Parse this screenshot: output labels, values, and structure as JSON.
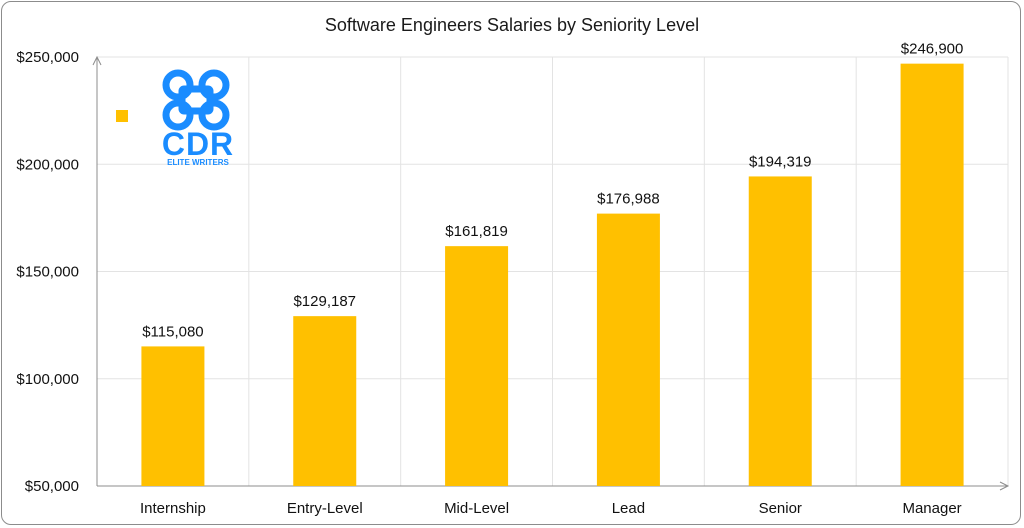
{
  "chart_data": {
    "type": "bar",
    "title": "Software Engineers Salaries by Seniority Level",
    "categories": [
      "Internship",
      "Entry-Level",
      "Mid-Level",
      "Lead",
      "Senior",
      "Manager"
    ],
    "values": [
      115080,
      129187,
      161819,
      176988,
      194319,
      246900
    ],
    "data_labels": [
      "$115,080",
      "$129,187",
      "$161,819",
      "$176,988",
      "$194,319",
      "$246,900"
    ],
    "ylim": [
      50000,
      250000
    ],
    "yticks": [
      50000,
      100000,
      150000,
      200000,
      250000
    ],
    "ytick_labels": [
      "$50,000",
      "$100,000",
      "$150,000",
      "$200,000",
      "$250,000"
    ],
    "xlabel": "",
    "ylabel": "",
    "grid": true,
    "bar_color": "#FFC000",
    "legend": {
      "placement": "top-left",
      "entries": [
        ""
      ]
    }
  },
  "logo": {
    "text_main": "CDR",
    "text_sub": "ELITE WRITERS",
    "color": "#1A8CFF"
  }
}
